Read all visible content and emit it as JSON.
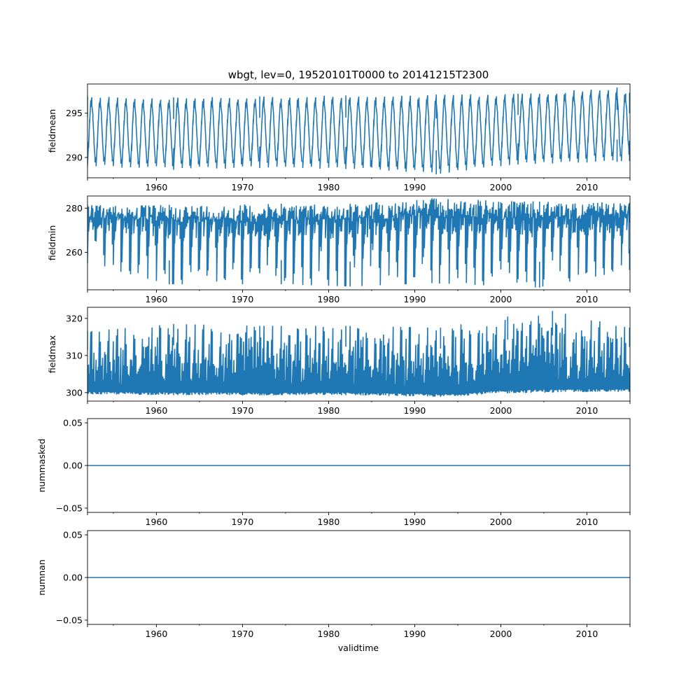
{
  "chart_data": {
    "type": "line",
    "title": "wbgt, lev=0, 19520101T0000 to 20141215T2300",
    "xlabel": "validtime",
    "x_range": [
      1952.0,
      2015.0
    ],
    "x_ticks": [
      1960,
      1970,
      1980,
      1990,
      2000,
      2010
    ],
    "x_tick_labels": [
      "1960",
      "1970",
      "1980",
      "1990",
      "2000",
      "2010"
    ],
    "line_color": "#1f77b4",
    "grid": false,
    "panels": [
      {
        "ylabel": "fieldmean",
        "ylim": [
          287.7,
          298.3
        ],
        "y_ticks": [
          290,
          295
        ],
        "y_tick_labels": [
          "290",
          "295"
        ],
        "series": [
          {
            "x": [
              1952.0,
              1962.0,
              1972.0,
              1982.0,
              1992.5,
              2002.0,
              2013.5,
              2014.95
            ],
            "low": [
              289.0,
              288.6,
              288.8,
              288.7,
              288.1,
              289.2,
              289.5,
              289.6
            ],
            "high": [
              296.9,
              296.8,
              296.9,
              297.0,
              297.1,
              297.2,
              297.9,
              297.3
            ]
          }
        ]
      },
      {
        "ylabel": "fieldmin",
        "ylim": [
          243.0,
          285.5
        ],
        "y_ticks": [
          260,
          280
        ],
        "y_tick_labels": [
          "260",
          "280"
        ],
        "series": [
          {
            "x": [
              1952.0,
              1961.5,
              1974.5,
              1982.5,
              1992.0,
              2004.5,
              2014.95
            ],
            "low": [
              255.0,
              245.5,
              245.5,
              244.5,
              246.0,
              244.0,
              252.0
            ],
            "high": [
              281.5,
              281.5,
              282.0,
              282.0,
              284.5,
              283.0,
              282.5
            ]
          }
        ]
      },
      {
        "ylabel": "fieldmax",
        "ylim": [
          297.7,
          323.0
        ],
        "y_ticks": [
          300,
          310,
          320
        ],
        "y_tick_labels": [
          "300",
          "310",
          "320"
        ],
        "series": [
          {
            "x": [
              1952.0,
              1962.0,
              1972.0,
              1982.0,
              1993.0,
              2000.8,
              2006.0,
              2014.95
            ],
            "low": [
              299.5,
              299.3,
              299.2,
              299.3,
              298.8,
              299.8,
              300.0,
              300.2
            ],
            "high": [
              316.5,
              318.5,
              318.0,
              318.0,
              317.5,
              320.5,
              322.0,
              317.5
            ]
          }
        ]
      },
      {
        "ylabel": "nummasked",
        "ylim": [
          -0.055,
          0.055
        ],
        "y_ticks": [
          -0.05,
          0.0,
          0.05
        ],
        "y_tick_labels": [
          "−0.05",
          "0.00",
          "0.05"
        ],
        "series": [
          {
            "x": [
              1952.0,
              2015.0
            ],
            "y": [
              0,
              0
            ]
          }
        ]
      },
      {
        "ylabel": "numnan",
        "ylim": [
          -0.055,
          0.055
        ],
        "y_ticks": [
          -0.05,
          0.0,
          0.05
        ],
        "y_tick_labels": [
          "−0.05",
          "0.00",
          "0.05"
        ],
        "series": [
          {
            "x": [
              1952.0,
              2015.0
            ],
            "y": [
              0,
              0
            ]
          }
        ]
      }
    ]
  }
}
